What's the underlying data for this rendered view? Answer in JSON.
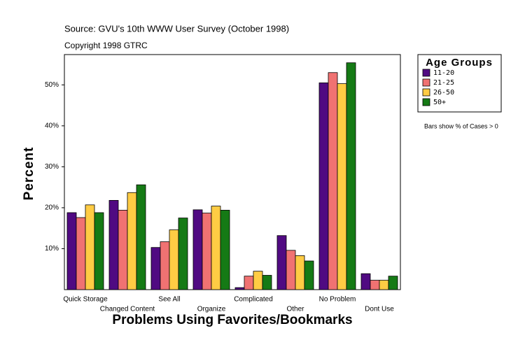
{
  "chart_data": {
    "type": "bar",
    "title": "Source: GVU's 10th WWW User Survey (October 1998)",
    "subtitle": "Copyright 1998 GTRC",
    "x_label": "Problems Using Favorites/Bookmarks",
    "y_label": "Percent",
    "legend_title": "Age Groups",
    "note": "Bars show % of Cases > 0",
    "categories": [
      "Quick Storage",
      "Changed Content",
      "See All",
      "Organize",
      "Complicated",
      "Other",
      "No Problem",
      "Dont Use"
    ],
    "series": [
      {
        "name": "11-20",
        "color": "#500a82",
        "values": [
          18.8,
          21.8,
          10.3,
          19.5,
          0.5,
          13.2,
          50.5,
          3.9
        ]
      },
      {
        "name": "21-25",
        "color": "#f07272",
        "values": [
          17.6,
          19.4,
          11.7,
          18.7,
          3.3,
          9.6,
          53.0,
          2.3
        ]
      },
      {
        "name": "26-50",
        "color": "#ffcc44",
        "values": [
          20.7,
          23.7,
          14.6,
          20.4,
          4.5,
          8.3,
          50.3,
          2.3
        ]
      },
      {
        "name": "50+",
        "color": "#157a15",
        "values": [
          18.8,
          25.6,
          17.5,
          19.4,
          3.5,
          7.0,
          55.4,
          3.3
        ]
      }
    ],
    "ylim": [
      0,
      57.4
    ],
    "yticks": [
      {
        "value": 10,
        "label": "10%"
      },
      {
        "value": 20,
        "label": "20%"
      },
      {
        "value": 30,
        "label": "30%"
      },
      {
        "value": 40,
        "label": "40%"
      },
      {
        "value": 50,
        "label": "50%"
      }
    ],
    "legend": "right"
  }
}
